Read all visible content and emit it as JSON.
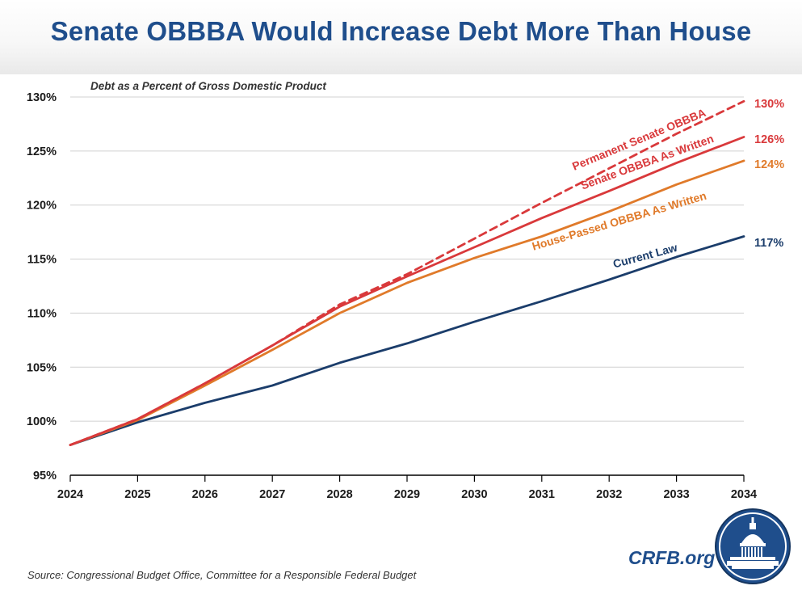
{
  "title": "Senate OBBBA Would Increase Debt More Than House",
  "source": "Source: Congressional Budget Office, Committee for a Responsible Federal Budget",
  "brand": "CRFB.org",
  "chart_data": {
    "type": "line",
    "subtitle": "Debt as a Percent of Gross Domestic Product",
    "x": [
      2024,
      2025,
      2026,
      2027,
      2028,
      2029,
      2030,
      2031,
      2032,
      2033,
      2034
    ],
    "ylim": [
      95,
      130
    ],
    "yticks": [
      "95%",
      "100%",
      "105%",
      "110%",
      "115%",
      "120%",
      "125%",
      "130%"
    ],
    "ytick_values": [
      95,
      100,
      105,
      110,
      115,
      120,
      125,
      130
    ],
    "grid": true,
    "series": [
      {
        "name": "Current Law",
        "color": "#1b3d6b",
        "dash": false,
        "values": [
          97.8,
          99.9,
          101.7,
          103.3,
          105.4,
          107.2,
          109.2,
          111.1,
          113.1,
          115.2,
          117.1
        ],
        "end_label": "117%"
      },
      {
        "name": "House-Passed OBBBA As Written",
        "color": "#e07a2a",
        "dash": false,
        "values": [
          97.8,
          100.1,
          103.3,
          106.6,
          110.0,
          112.8,
          115.1,
          117.1,
          119.4,
          121.9,
          124.1
        ],
        "end_label": "124%"
      },
      {
        "name": "Senate OBBBA As Written",
        "color": "#d9393b",
        "dash": false,
        "values": [
          97.8,
          100.2,
          103.5,
          107.0,
          110.6,
          113.4,
          116.1,
          118.8,
          121.3,
          123.9,
          126.3
        ],
        "end_label": "126%"
      },
      {
        "name": "Permanent Senate OBBBA",
        "color": "#d9393b",
        "dash": true,
        "values": [
          97.8,
          100.2,
          103.5,
          107.0,
          110.8,
          113.6,
          116.9,
          120.2,
          123.4,
          126.6,
          129.6
        ],
        "end_label": "130%"
      }
    ]
  }
}
